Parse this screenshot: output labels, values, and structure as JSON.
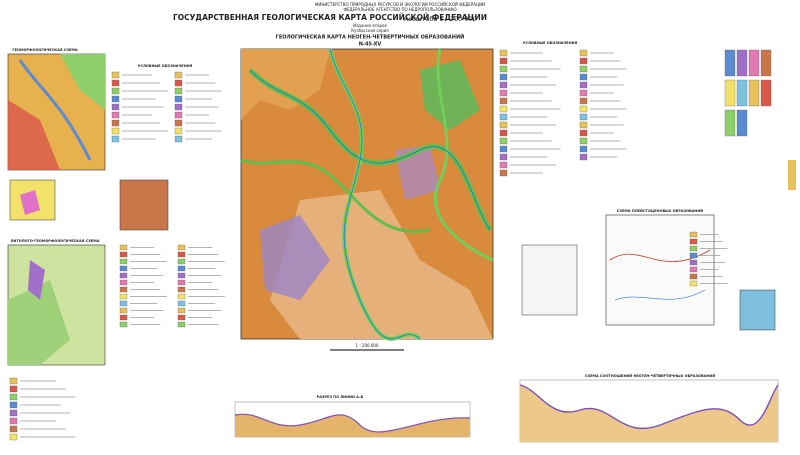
{
  "header": {
    "ministry": "МИНИСТЕРСТВО ПРИРОДНЫХ РЕСУРСОВ И ЭКОЛОГИИ РОССИЙСКОЙ ФЕДЕРАЦИИ",
    "agency": "ФЕДЕРАЛЬНОЕ АГЕНТСТВО ПО НЕДРОПОЛЬЗОВАНИЮ",
    "title": "ГОСУДАРСТВЕННАЯ ГЕОЛОГИЧЕСКАЯ КАРТА РОССИЙСКОЙ ФЕДЕРАЦИИ",
    "scale": "масштаба 1 : 200 000",
    "edition": "Издание второе",
    "series": "Кузбасская серия",
    "map_title": "ГЕОЛОГИЧЕСКАЯ КАРТА НЕОГЕН-ЧЕТВЕРТИЧНЫХ ОБРАЗОВАНИЙ",
    "sheet": "N-45-XV"
  },
  "main_map": {
    "scale_label": "1 : 200 000"
  },
  "insets": {
    "geomorph": "ГЕОМОРФОЛОГИЧЕСКАЯ СХЕМА",
    "lower_left": "ЛИТОЛОГО-ГЕОМОРФОЛОГИЧЕСКАЯ СХЕМА",
    "right_scheme": "СХЕМА ПЛЕЙСТОЦЕНОВЫХ ОБРАЗОВАНИЙ"
  },
  "legend": {
    "title": "УСЛОВНЫЕ ОБОЗНАЧЕНИЯ"
  },
  "sections": {
    "profile_1": "РАЗРЕЗ ПО ЛИНИИ А–Б",
    "profile_2": "СХЕМА СООТНОШЕНИЙ НЕОГЕН-ЧЕТВЕРТИЧНЫХ ОБРАЗОВАНИЙ"
  }
}
